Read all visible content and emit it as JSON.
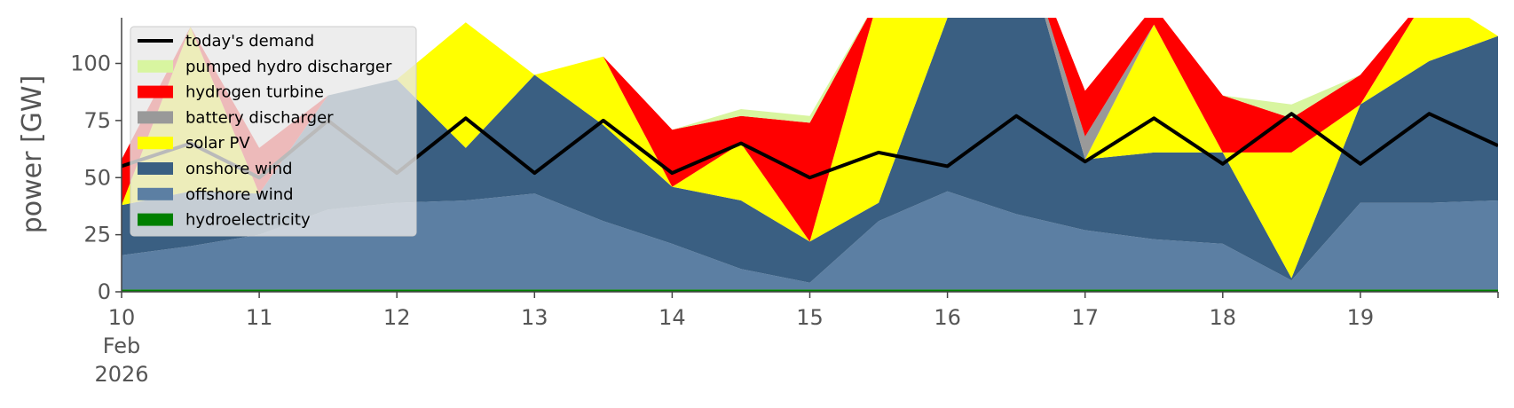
{
  "chart_data": {
    "type": "area",
    "ylabel": "power [GW]",
    "ylim": [
      0,
      120
    ],
    "yticks": [
      0,
      25,
      50,
      75,
      100
    ],
    "ytick_labels": [
      "0",
      "25",
      "50",
      "75",
      "100"
    ],
    "xlim": [
      "2026-02-10",
      "2026-02-20"
    ],
    "xtick_labels": [
      {
        "x": "2026-02-10",
        "lines": [
          "10",
          "Feb",
          "2026"
        ]
      },
      {
        "x": "2026-02-11",
        "lines": [
          "11"
        ]
      },
      {
        "x": "2026-02-12",
        "lines": [
          "12"
        ]
      },
      {
        "x": "2026-02-13",
        "lines": [
          "13"
        ]
      },
      {
        "x": "2026-02-14",
        "lines": [
          "14"
        ]
      },
      {
        "x": "2026-02-15",
        "lines": [
          "15"
        ]
      },
      {
        "x": "2026-02-16",
        "lines": [
          "16"
        ]
      },
      {
        "x": "2026-02-17",
        "lines": [
          "17"
        ]
      },
      {
        "x": "2026-02-18",
        "lines": [
          "18"
        ]
      },
      {
        "x": "2026-02-19",
        "lines": [
          "19"
        ]
      }
    ],
    "grid": false,
    "legend_position": "top-left",
    "x": [
      "2026-02-10",
      "2026-02-10 12:00",
      "2026-02-11",
      "2026-02-11 12:00",
      "2026-02-12",
      "2026-02-12 12:00",
      "2026-02-13",
      "2026-02-13 12:00",
      "2026-02-14",
      "2026-02-14 12:00",
      "2026-02-15",
      "2026-02-15 12:00",
      "2026-02-16",
      "2026-02-16 12:00",
      "2026-02-17",
      "2026-02-17 12:00",
      "2026-02-18",
      "2026-02-18 12:00",
      "2026-02-19",
      "2026-02-19 12:00",
      "2026-02-20"
    ],
    "stack_series": [
      {
        "name": "hydroelectricity",
        "color": "#008000",
        "values": [
          1,
          1,
          1,
          1,
          1,
          1,
          1,
          1,
          1,
          1,
          1,
          1,
          1,
          1,
          1,
          1,
          1,
          1,
          1,
          1,
          1
        ]
      },
      {
        "name": "offshore wind",
        "color": "#5c7fa3",
        "values": [
          15,
          19,
          24,
          35,
          38,
          39,
          42,
          30,
          20,
          9,
          3,
          30,
          43,
          33,
          26,
          22,
          20,
          4,
          38,
          38,
          39
        ]
      },
      {
        "name": "onshore wind",
        "color": "#3a5f82",
        "values": [
          22,
          24,
          18,
          50,
          54,
          23,
          52,
          42,
          25,
          30,
          18,
          8,
          76,
          130,
          31,
          38,
          40,
          1,
          43,
          62,
          72
        ]
      },
      {
        "name": "solar PV",
        "color": "#ffff00",
        "values": [
          0,
          72,
          0,
          0,
          0,
          55,
          0,
          30,
          0,
          25,
          0,
          90,
          0,
          0,
          0,
          56,
          0,
          55,
          0,
          30,
          0
        ]
      },
      {
        "name": "battery discharger",
        "color": "#999999",
        "values": [
          0,
          0,
          0,
          0,
          0,
          0,
          0,
          0,
          0,
          0,
          0,
          0,
          0,
          0,
          10,
          0,
          0,
          0,
          0,
          0,
          0
        ]
      },
      {
        "name": "hydrogen turbine",
        "color": "#ff0000",
        "values": [
          20,
          0,
          20,
          0,
          0,
          0,
          0,
          0,
          25,
          12,
          52,
          0,
          0,
          0,
          20,
          8,
          25,
          15,
          13,
          0,
          0
        ]
      },
      {
        "name": "pumped hydro discharger",
        "color": "#d8f5a0",
        "values": [
          0,
          0,
          0,
          0,
          0,
          0,
          0,
          0,
          0,
          3,
          3,
          0,
          0,
          0,
          0,
          0,
          0,
          6,
          0,
          0,
          0
        ]
      }
    ],
    "line_series": {
      "name": "today's demand",
      "color": "#000000",
      "values": [
        55,
        65,
        50,
        75,
        52,
        76,
        52,
        75,
        52,
        65,
        50,
        61,
        55,
        77,
        57,
        76,
        56,
        78,
        56,
        78,
        64
      ]
    },
    "legend": [
      {
        "label": "today's demand",
        "color": "#000000",
        "kind": "line"
      },
      {
        "label": "pumped hydro discharger",
        "color": "#d8f5a0",
        "kind": "patch"
      },
      {
        "label": "hydrogen turbine",
        "color": "#ff0000",
        "kind": "patch"
      },
      {
        "label": "battery discharger",
        "color": "#999999",
        "kind": "patch"
      },
      {
        "label": "solar PV",
        "color": "#ffff00",
        "kind": "patch"
      },
      {
        "label": "onshore wind",
        "color": "#3a5f82",
        "kind": "patch"
      },
      {
        "label": "offshore wind",
        "color": "#5c7fa3",
        "kind": "patch"
      },
      {
        "label": "hydroelectricity",
        "color": "#008000",
        "kind": "patch"
      }
    ]
  }
}
